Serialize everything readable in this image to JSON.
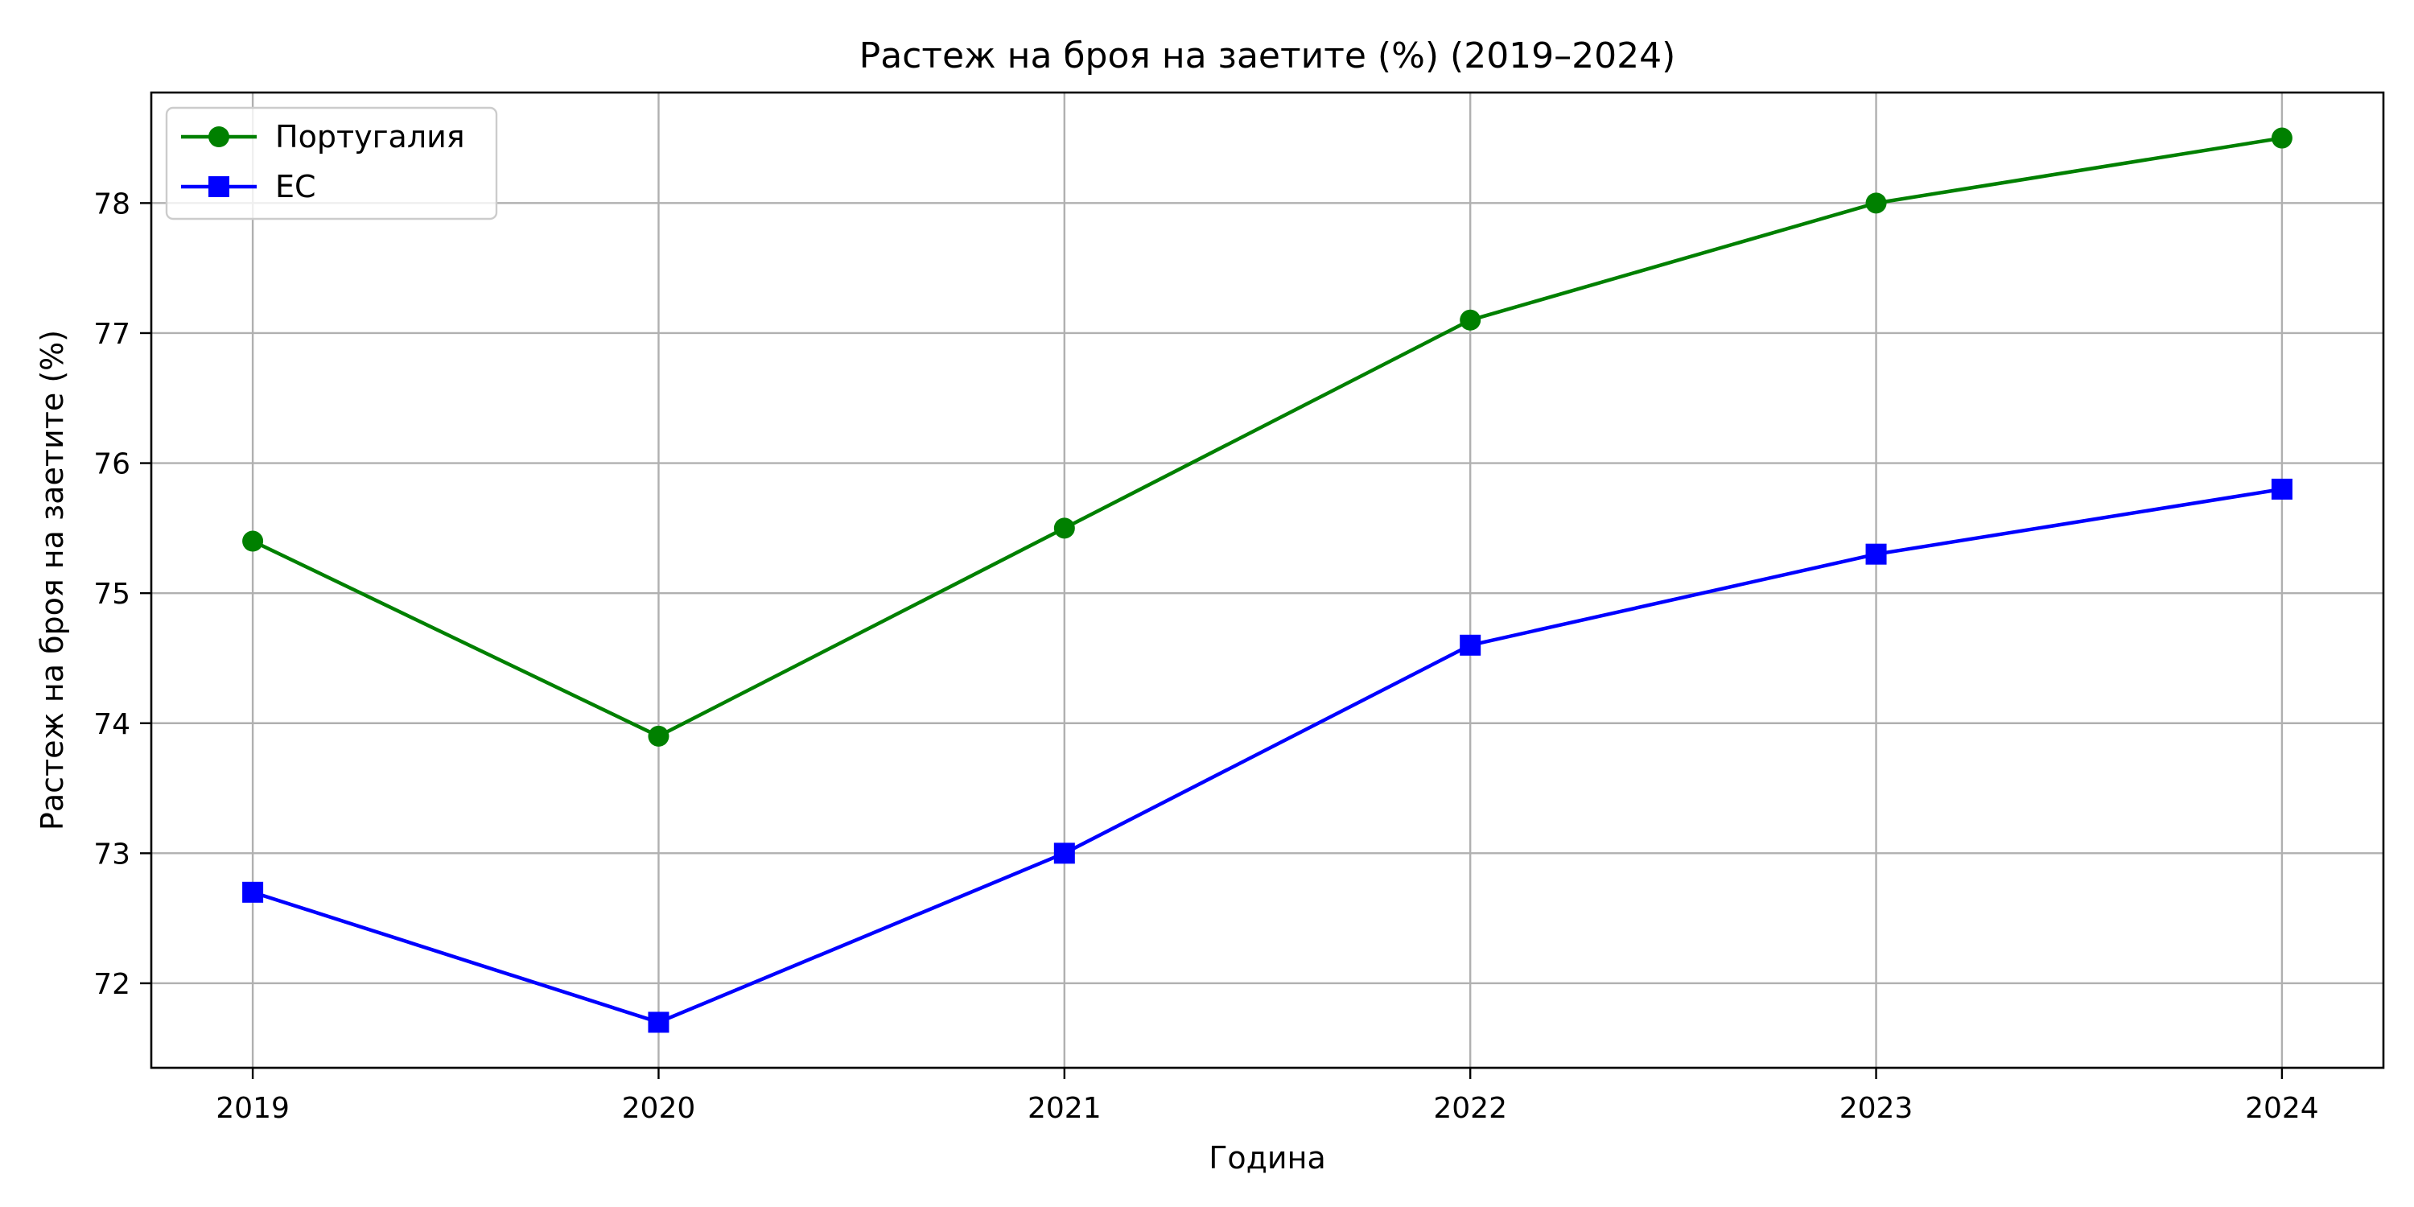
{
  "chart_data": {
    "type": "line",
    "title": "Растеж на броя на заетите (%) (2019–2024)",
    "xlabel": "Година",
    "ylabel": "Растеж на броя на заетите (%)",
    "x": [
      2019,
      2020,
      2021,
      2022,
      2023,
      2024
    ],
    "x_tick_labels": [
      "2019",
      "2020",
      "2021",
      "2022",
      "2023",
      "2024"
    ],
    "xlim": [
      2018.75,
      2024.25
    ],
    "ylim": [
      71.35,
      78.85
    ],
    "y_ticks": [
      72,
      73,
      74,
      75,
      76,
      77,
      78
    ],
    "y_tick_labels": [
      "72",
      "73",
      "74",
      "75",
      "76",
      "77",
      "78"
    ],
    "grid": true,
    "legend_position": "top-left",
    "series": [
      {
        "name": "Португалия",
        "values": [
          75.4,
          73.9,
          75.5,
          77.1,
          78.0,
          78.5
        ],
        "color": "#008000",
        "marker": "circle"
      },
      {
        "name": "ЕС",
        "values": [
          72.7,
          71.7,
          73.0,
          74.6,
          75.3,
          75.8
        ],
        "color": "#0000ff",
        "marker": "square"
      }
    ]
  }
}
